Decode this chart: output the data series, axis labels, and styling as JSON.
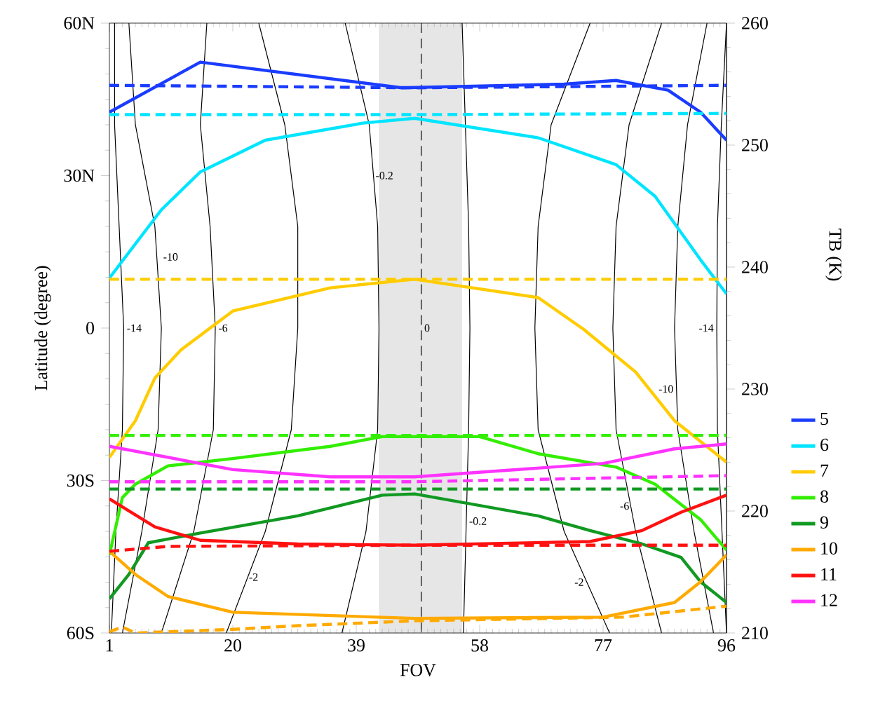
{
  "chart_data": {
    "type": "line",
    "xlabel": "FOV",
    "ylabel": "Latitude (degree)",
    "y2label": "TB (K)",
    "xlim": [
      1,
      96
    ],
    "xticks": [
      1,
      20,
      39,
      58,
      77,
      96
    ],
    "ylim": [
      -60,
      60
    ],
    "yticks": [
      {
        "value": -60,
        "label": "60S"
      },
      {
        "value": -30,
        "label": "30S"
      },
      0,
      {
        "value": 30,
        "label": "30N"
      },
      {
        "value": 60,
        "label": "60N"
      }
    ],
    "y2lim": [
      210,
      260
    ],
    "y2ticks": [
      210,
      220,
      230,
      240,
      250,
      260
    ],
    "legend": "right",
    "marker": "none",
    "bands": [
      {
        "axis": "x",
        "from": 42.5,
        "to": 55.3,
        "color": "#e6e6e6"
      }
    ],
    "annotations": [
      {
        "text": "-14",
        "x": 3.2,
        "y": 0
      },
      {
        "text": "-10",
        "x": 8.8,
        "y": 14
      },
      {
        "text": "-6",
        "x": 17.3,
        "y": 0
      },
      {
        "text": "-2",
        "x": 22,
        "y": -49
      },
      {
        "text": "-0.2",
        "x": 41.5,
        "y": 30
      },
      {
        "text": "0",
        "x": 49,
        "y": 0
      },
      {
        "text": "-0.2",
        "x": 55.9,
        "y": -38
      },
      {
        "text": "-2",
        "x": 74.5,
        "y": -50
      },
      {
        "text": "-6",
        "x": 81.5,
        "y": -35
      },
      {
        "text": "-10",
        "x": 88.3,
        "y": -12
      },
      {
        "text": "-14",
        "x": 94.5,
        "y": 0
      }
    ],
    "series": [
      {
        "color": "#000000",
        "x": [
          1.8,
          1.8,
          2.5,
          3.2,
          3,
          2,
          1.3
        ],
        "values": [
          60,
          40,
          20,
          0,
          -20,
          -40,
          -60
        ]
      },
      {
        "color": "#000000",
        "x": [
          4,
          5,
          8,
          9,
          8.5,
          6,
          3
        ],
        "values": [
          60,
          40,
          20,
          0,
          -20,
          -40,
          -60
        ]
      },
      {
        "color": "#000000",
        "x": [
          16,
          15,
          16.5,
          17.3,
          17,
          14,
          9
        ],
        "values": [
          60,
          40,
          20,
          0,
          -20,
          -40,
          -60
        ]
      },
      {
        "color": "#000000",
        "x": [
          24,
          28,
          30,
          30,
          29,
          25,
          19
        ],
        "values": [
          60,
          40,
          20,
          0,
          -20,
          -40,
          -60
        ]
      },
      {
        "color": "#000000",
        "x": [
          37.3,
          41,
          42.3,
          42.5,
          42.3,
          40.5,
          36.8
        ],
        "values": [
          60,
          40,
          20,
          0,
          -20,
          -40,
          -60
        ]
      },
      {
        "color": "#000000",
        "line_style": "dashed",
        "x": [
          49,
          49
        ],
        "values": [
          60,
          -60
        ]
      },
      {
        "color": "#000000",
        "x": [
          55.3,
          55.8,
          56.3,
          56.5,
          56.3,
          55.9,
          55.5
        ],
        "values": [
          60,
          40,
          20,
          0,
          -20,
          -40,
          -60
        ]
      },
      {
        "color": "#000000",
        "x": [
          75,
          69,
          67,
          66.5,
          67,
          71,
          78
        ],
        "values": [
          60,
          40,
          20,
          0,
          -20,
          -40,
          -60
        ]
      },
      {
        "color": "#000000",
        "x": [
          86,
          81,
          79,
          78.5,
          79,
          82,
          86
        ],
        "values": [
          60,
          40,
          20,
          0,
          -20,
          -40,
          -60
        ]
      },
      {
        "color": "#000000",
        "x": [
          93,
          90,
          88.5,
          88,
          88.5,
          91,
          94
        ],
        "values": [
          60,
          40,
          20,
          0,
          -20,
          -40,
          -60
        ]
      },
      {
        "color": "#000000",
        "x": [
          96,
          95.2,
          94.6,
          94.5,
          94.6,
          95.3,
          96
        ],
        "values": [
          60,
          40,
          20,
          0,
          -20,
          -40,
          -60
        ]
      },
      {
        "name": "5",
        "color": "#1a3cff",
        "axis": "y2",
        "x": [
          1,
          15,
          46,
          71,
          79,
          87,
          92,
          96
        ],
        "values": [
          252.7,
          256.8,
          254.7,
          255.0,
          255.3,
          254.5,
          252.7,
          250.4
        ]
      },
      {
        "name": "6",
        "color": "#00e5ff",
        "axis": "y2",
        "x": [
          1,
          9,
          15,
          25,
          40,
          48,
          67,
          79,
          85,
          92,
          96
        ],
        "values": [
          239.1,
          244.7,
          247.8,
          250.4,
          251.8,
          252.2,
          250.6,
          248.4,
          245.8,
          240.6,
          237.8
        ]
      },
      {
        "name": "7",
        "color": "#ffcc00",
        "axis": "y2",
        "x": [
          1,
          5,
          8,
          12,
          20,
          35,
          48,
          67,
          74,
          82,
          88,
          92,
          96
        ],
        "values": [
          224.4,
          227.4,
          230.9,
          233.2,
          236.4,
          238.3,
          239.0,
          237.5,
          234.9,
          231.4,
          227.4,
          225.7,
          224.0
        ]
      },
      {
        "name": "8",
        "color": "#33ee00",
        "axis": "y2",
        "x": [
          1,
          3,
          5,
          10,
          20,
          35,
          43,
          58,
          67,
          79,
          85,
          92,
          96
        ],
        "values": [
          216.4,
          221.1,
          222.2,
          223.7,
          224.3,
          225.3,
          226.1,
          226.1,
          224.7,
          223.6,
          222.2,
          219.3,
          216.8
        ]
      },
      {
        "name": "9",
        "color": "#119922",
        "axis": "y2",
        "x": [
          1,
          4,
          7,
          15,
          30,
          43,
          48,
          67,
          75,
          83,
          89,
          92,
          96
        ],
        "values": [
          212.8,
          214.8,
          217.4,
          218.2,
          219.6,
          221.3,
          221.4,
          219.6,
          218.4,
          217.3,
          216.2,
          214.2,
          212.5
        ]
      },
      {
        "name": "10",
        "color": "#ffaa00",
        "axis": "y2",
        "x": [
          1,
          5,
          10,
          20,
          48,
          77,
          88,
          92,
          96
        ],
        "values": [
          216.7,
          214.8,
          213.0,
          211.7,
          211.2,
          211.3,
          212.5,
          214.2,
          216.4
        ]
      },
      {
        "name": "11",
        "color": "#ff1111",
        "axis": "y2",
        "x": [
          1,
          8,
          15,
          30,
          48,
          75,
          83,
          89,
          96
        ],
        "values": [
          221.0,
          218.7,
          217.6,
          217.3,
          217.2,
          217.5,
          218.4,
          219.9,
          221.3
        ]
      },
      {
        "name": "12",
        "color": "#ff33ff",
        "axis": "y2",
        "x": [
          1,
          20,
          35,
          48,
          77,
          88,
          96
        ],
        "values": [
          225.3,
          223.4,
          222.8,
          222.8,
          223.9,
          225.1,
          225.5
        ]
      },
      {
        "color": "#1a3cff",
        "axis": "y2",
        "line_style": "dashed",
        "x": [
          1,
          48,
          96
        ],
        "values": [
          254.9,
          254.7,
          254.9
        ]
      },
      {
        "color": "#00e5ff",
        "axis": "y2",
        "line_style": "dashed",
        "x": [
          1,
          48,
          96
        ],
        "values": [
          252.5,
          252.5,
          252.6
        ]
      },
      {
        "color": "#ffcc00",
        "axis": "y2",
        "line_style": "dashed",
        "x": [
          1,
          48,
          96
        ],
        "values": [
          239.0,
          239.0,
          239.0
        ]
      },
      {
        "color": "#33ee00",
        "axis": "y2",
        "line_style": "dashed",
        "x": [
          1,
          48,
          96
        ],
        "values": [
          226.2,
          226.2,
          226.2
        ]
      },
      {
        "color": "#119922",
        "axis": "y2",
        "line_style": "dashed",
        "x": [
          1,
          48,
          96
        ],
        "values": [
          221.8,
          221.8,
          221.8
        ]
      },
      {
        "color": "#ffaa00",
        "axis": "y2",
        "line_style": "dashed",
        "x": [
          1,
          3,
          5,
          20,
          30,
          48,
          80,
          96
        ],
        "values": [
          210.1,
          210.5,
          210.0,
          210.3,
          210.6,
          211.0,
          211.3,
          212.2
        ]
      },
      {
        "color": "#ff1111",
        "axis": "y2",
        "line_style": "dashed",
        "x": [
          1,
          10,
          48,
          96
        ],
        "values": [
          216.7,
          217.1,
          217.2,
          217.2
        ]
      },
      {
        "color": "#ff33ff",
        "axis": "y2",
        "line_style": "dashed",
        "x": [
          1,
          48,
          96
        ],
        "values": [
          222.4,
          222.4,
          222.9
        ]
      }
    ]
  }
}
